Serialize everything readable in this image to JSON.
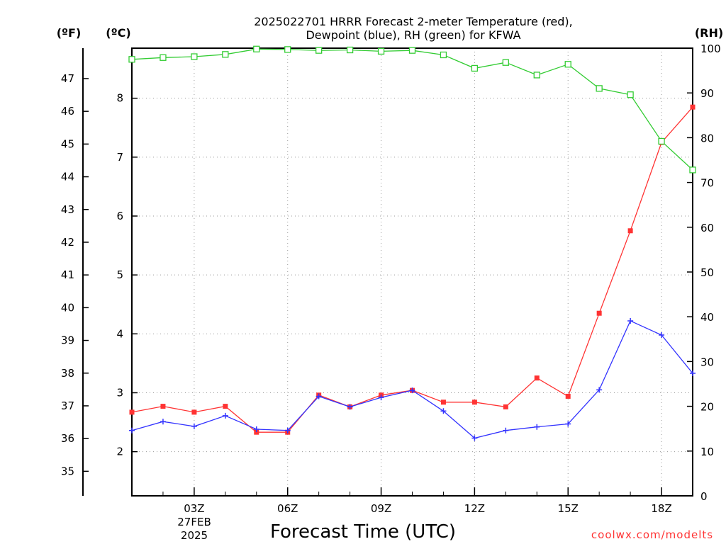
{
  "chart_data": {
    "type": "line",
    "title_line1": "2025022701 HRRR Forecast 2-meter Temperature (red),",
    "title_line2": "Dewpoint (blue), RH (green) for KFWA",
    "xlabel": "Forecast Time (UTC)",
    "credit": "coolwx.com/modelts",
    "units": {
      "fahrenheit": "(ºF)",
      "celsius": "(ºC)",
      "rh": "(RH)"
    },
    "x_hours": [
      1,
      2,
      3,
      4,
      5,
      6,
      7,
      8,
      9,
      10,
      11,
      12,
      13,
      14,
      15,
      16,
      17,
      18,
      19
    ],
    "x_ticks": [
      {
        "hour": 3,
        "label": "03Z"
      },
      {
        "hour": 6,
        "label": "06Z"
      },
      {
        "hour": 9,
        "label": "09Z"
      },
      {
        "hour": 12,
        "label": "12Z"
      },
      {
        "hour": 15,
        "label": "15Z"
      },
      {
        "hour": 18,
        "label": "18Z"
      }
    ],
    "date_label": "27FEB",
    "year_label": "2025",
    "c_range": [
      1.25,
      8.85
    ],
    "c_ticks": [
      "2",
      "3",
      "4",
      "5",
      "6",
      "7",
      "8"
    ],
    "f_ticks": [
      "35",
      "36",
      "37",
      "38",
      "39",
      "40",
      "41",
      "42",
      "43",
      "44",
      "45",
      "46",
      "47"
    ],
    "rh_ticks": [
      "0",
      "10",
      "20",
      "30",
      "40",
      "50",
      "60",
      "70",
      "80",
      "90",
      "100"
    ],
    "rh_range": [
      0,
      100
    ],
    "grid": true,
    "series": [
      {
        "name": "Temperature",
        "axis": "celsius",
        "color": "#ff3333",
        "marker": "filled-square",
        "values": [
          2.67,
          2.77,
          2.67,
          2.77,
          2.33,
          2.33,
          2.96,
          2.76,
          2.96,
          3.04,
          2.84,
          2.84,
          2.76,
          3.25,
          2.94,
          4.35,
          5.75,
          7.25,
          7.85
        ]
      },
      {
        "name": "Dewpoint",
        "axis": "celsius",
        "color": "#3333ff",
        "marker": "plus",
        "values": [
          2.36,
          2.51,
          2.43,
          2.61,
          2.38,
          2.36,
          2.94,
          2.76,
          2.92,
          3.04,
          2.69,
          2.23,
          2.36,
          2.42,
          2.47,
          3.05,
          4.22,
          3.98,
          3.33
        ]
      },
      {
        "name": "RH",
        "axis": "rh",
        "color": "#33cc33",
        "marker": "open-square",
        "values": [
          97.5,
          97.9,
          98.1,
          98.6,
          99.8,
          99.7,
          99.5,
          99.6,
          99.3,
          99.5,
          98.5,
          95.5,
          96.8,
          94.0,
          96.4,
          91.0,
          89.6,
          79.2,
          72.8
        ]
      }
    ]
  }
}
